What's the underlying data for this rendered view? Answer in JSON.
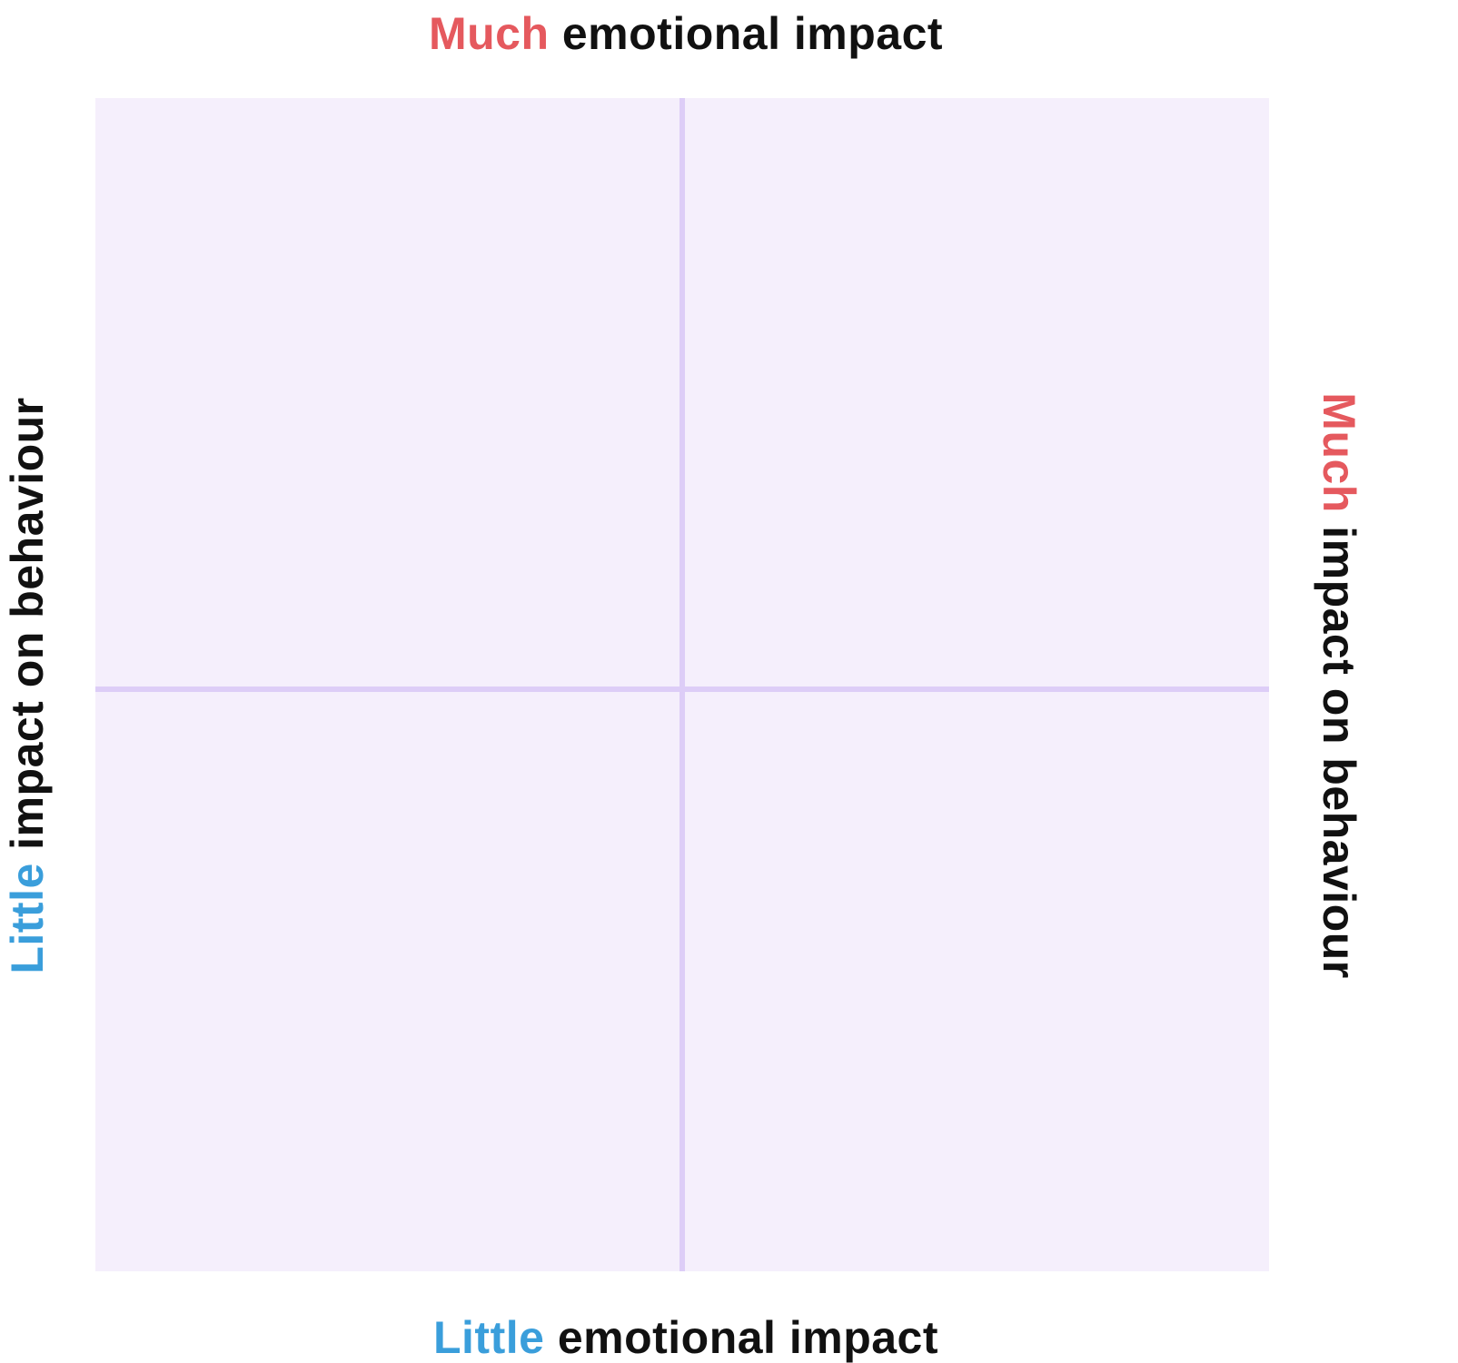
{
  "axes": {
    "top": {
      "accent": "Much",
      "rest": " emotional impact"
    },
    "bottom": {
      "accent": "Little",
      "rest": " emotional impact"
    },
    "left": {
      "accent": "Little",
      "rest": " impact on behaviour"
    },
    "right": {
      "accent": "Much",
      "rest": " impact on behaviour"
    }
  },
  "colors": {
    "much_accent": "#e5595e",
    "little_accent": "#3a9edb",
    "text": "#111111",
    "grid_fill": "#f5effc",
    "divider": "#ddcdf7"
  }
}
